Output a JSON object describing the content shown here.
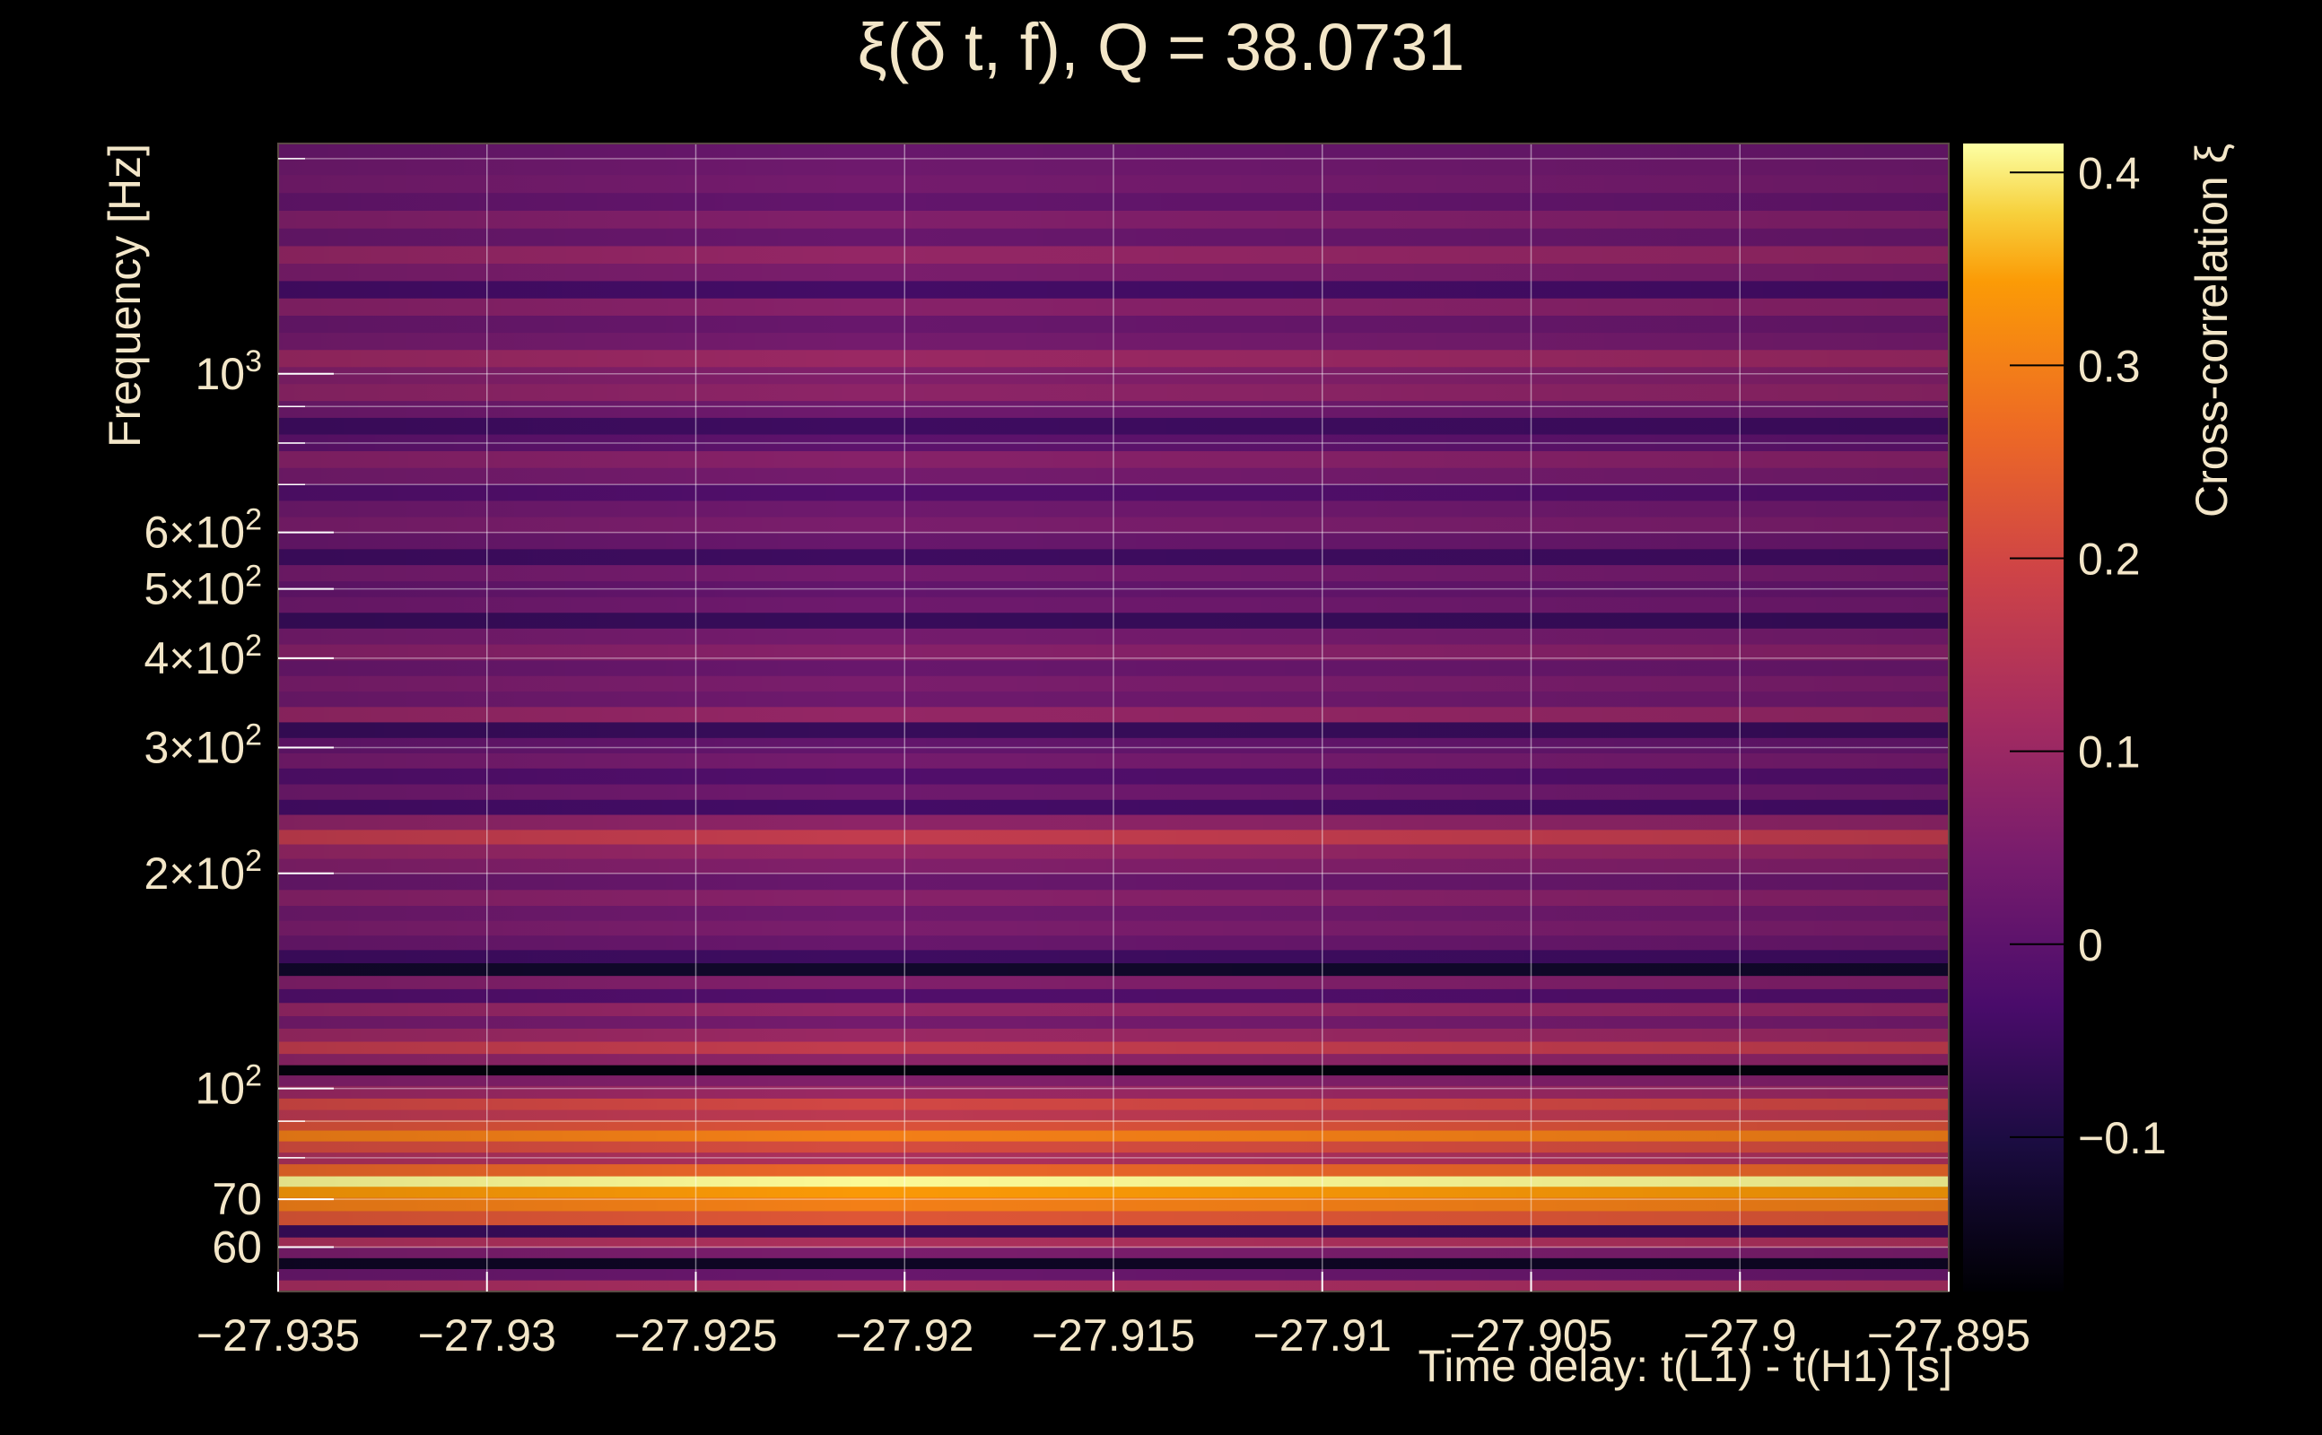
{
  "chart_data": {
    "type": "heatmap",
    "title": "ξ(δ t, f), Q = 38.0731",
    "xlabel": "Time delay: t(L1) - t(H1) [s]",
    "ylabel": "Frequency [Hz]",
    "colorbar_label": "Cross-correlation ξ",
    "x_range": [
      -27.935,
      -27.895
    ],
    "y_range": [
      52,
      2100
    ],
    "y_scale": "log",
    "color_range": [
      -0.18,
      0.415
    ],
    "colormap": "inferno",
    "grid": true,
    "x_ticks": [
      {
        "value": -27.935,
        "label": "−27.935"
      },
      {
        "value": -27.93,
        "label": "−27.93"
      },
      {
        "value": -27.925,
        "label": "−27.925"
      },
      {
        "value": -27.92,
        "label": "−27.92"
      },
      {
        "value": -27.915,
        "label": "−27.915"
      },
      {
        "value": -27.91,
        "label": "−27.91"
      },
      {
        "value": -27.905,
        "label": "−27.905"
      },
      {
        "value": -27.9,
        "label": "−27.9"
      },
      {
        "value": -27.895,
        "label": "−27.895"
      }
    ],
    "y_ticks": [
      {
        "value": 60,
        "base": "60",
        "exp": ""
      },
      {
        "value": 70,
        "base": "70",
        "exp": ""
      },
      {
        "value": 100,
        "base": "10",
        "exp": "2"
      },
      {
        "value": 200,
        "base": "2×10",
        "exp": "2"
      },
      {
        "value": 300,
        "base": "3×10",
        "exp": "2"
      },
      {
        "value": 400,
        "base": "4×10",
        "exp": "2"
      },
      {
        "value": 500,
        "base": "5×10",
        "exp": "2"
      },
      {
        "value": 600,
        "base": "6×10",
        "exp": "2"
      },
      {
        "value": 1000,
        "base": "10",
        "exp": "3"
      }
    ],
    "y_minor_ticks": [
      80,
      90,
      700,
      800,
      900,
      2000
    ],
    "color_ticks": [
      {
        "value": -0.1,
        "label": "−0.1"
      },
      {
        "value": 0,
        "label": "0"
      },
      {
        "value": 0.1,
        "label": "0.1"
      },
      {
        "value": 0.2,
        "label": "0.2"
      },
      {
        "value": 0.3,
        "label": "0.3"
      },
      {
        "value": 0.4,
        "label": "0.4"
      }
    ],
    "frequency_bands": [
      {
        "f": 53,
        "xi": 0.12
      },
      {
        "f": 55,
        "xi": 0.02
      },
      {
        "f": 57,
        "xi": -0.14
      },
      {
        "f": 59,
        "xi": 0.05
      },
      {
        "f": 61,
        "xi": 0.13
      },
      {
        "f": 63,
        "xi": -0.06
      },
      {
        "f": 66,
        "xi": 0.23
      },
      {
        "f": 69,
        "xi": 0.3
      },
      {
        "f": 72,
        "xi": 0.34
      },
      {
        "f": 74,
        "xi": 0.41
      },
      {
        "f": 77,
        "xi": 0.26
      },
      {
        "f": 80,
        "xi": 0.13
      },
      {
        "f": 83,
        "xi": 0.21
      },
      {
        "f": 86,
        "xi": 0.3
      },
      {
        "f": 89,
        "xi": 0.22
      },
      {
        "f": 92,
        "xi": 0.16
      },
      {
        "f": 95,
        "xi": 0.2
      },
      {
        "f": 99,
        "xi": 0.1
      },
      {
        "f": 103,
        "xi": 0.06
      },
      {
        "f": 106,
        "xi": -0.17
      },
      {
        "f": 110,
        "xi": 0.08
      },
      {
        "f": 114,
        "xi": 0.17
      },
      {
        "f": 119,
        "xi": 0.1
      },
      {
        "f": 124,
        "xi": 0.04
      },
      {
        "f": 129,
        "xi": 0.09
      },
      {
        "f": 135,
        "xi": -0.02
      },
      {
        "f": 141,
        "xi": 0.06
      },
      {
        "f": 147,
        "xi": -0.13
      },
      {
        "f": 153,
        "xi": -0.05
      },
      {
        "f": 160,
        "xi": 0.02
      },
      {
        "f": 168,
        "xi": 0.05
      },
      {
        "f": 176,
        "xi": 0.03
      },
      {
        "f": 185,
        "xi": 0.07
      },
      {
        "f": 195,
        "xi": 0.02
      },
      {
        "f": 205,
        "xi": 0.06
      },
      {
        "f": 215,
        "xi": 0.09
      },
      {
        "f": 225,
        "xi": 0.17
      },
      {
        "f": 236,
        "xi": 0.08
      },
      {
        "f": 248,
        "xi": -0.04
      },
      {
        "f": 260,
        "xi": 0.03
      },
      {
        "f": 274,
        "xi": -0.02
      },
      {
        "f": 288,
        "xi": 0.04
      },
      {
        "f": 302,
        "xi": 0.01
      },
      {
        "f": 318,
        "xi": -0.06
      },
      {
        "f": 334,
        "xi": 0.09
      },
      {
        "f": 351,
        "xi": 0.03
      },
      {
        "f": 369,
        "xi": 0.05
      },
      {
        "f": 388,
        "xi": 0.02
      },
      {
        "f": 408,
        "xi": 0.07
      },
      {
        "f": 430,
        "xi": 0.04
      },
      {
        "f": 452,
        "xi": -0.06
      },
      {
        "f": 476,
        "xi": 0.03
      },
      {
        "f": 500,
        "xi": 0.01
      },
      {
        "f": 527,
        "xi": 0.04
      },
      {
        "f": 555,
        "xi": -0.05
      },
      {
        "f": 584,
        "xi": 0.02
      },
      {
        "f": 615,
        "xi": 0.05
      },
      {
        "f": 648,
        "xi": 0.03
      },
      {
        "f": 683,
        "xi": -0.02
      },
      {
        "f": 720,
        "xi": 0.04
      },
      {
        "f": 760,
        "xi": 0.07
      },
      {
        "f": 802,
        "xi": 0.0
      },
      {
        "f": 846,
        "xi": -0.05
      },
      {
        "f": 893,
        "xi": 0.03
      },
      {
        "f": 943,
        "xi": 0.08
      },
      {
        "f": 996,
        "xi": 0.06
      },
      {
        "f": 1052,
        "xi": 0.1
      },
      {
        "f": 1112,
        "xi": 0.04
      },
      {
        "f": 1175,
        "xi": 0.02
      },
      {
        "f": 1242,
        "xi": 0.07
      },
      {
        "f": 1313,
        "xi": -0.04
      },
      {
        "f": 1389,
        "xi": 0.05
      },
      {
        "f": 1469,
        "xi": 0.09
      },
      {
        "f": 1555,
        "xi": 0.02
      },
      {
        "f": 1646,
        "xi": 0.06
      },
      {
        "f": 1743,
        "xi": 0.01
      },
      {
        "f": 1846,
        "xi": 0.04
      },
      {
        "f": 1956,
        "xi": 0.03
      },
      {
        "f": 2073,
        "xi": 0.02
      }
    ]
  }
}
